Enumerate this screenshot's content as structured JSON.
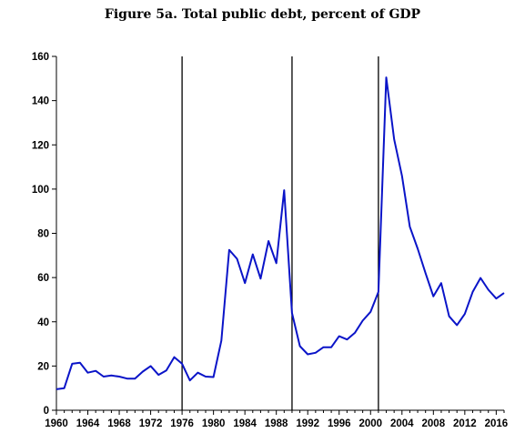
{
  "chart_data": {
    "type": "line",
    "title": "Figure 5a. Total public debt, percent of GDP",
    "xlabel": "",
    "ylabel": "",
    "xlim": [
      1960,
      2017
    ],
    "ylim": [
      0,
      160
    ],
    "y_ticks": [
      0,
      20,
      40,
      60,
      80,
      100,
      120,
      140,
      160
    ],
    "x_ticks": [
      1960,
      1964,
      1968,
      1972,
      1976,
      1980,
      1984,
      1988,
      1992,
      1996,
      2000,
      2004,
      2008,
      2012,
      2016
    ],
    "grid": false,
    "series_color": "#0a14c8",
    "reference_lines_x": [
      1976,
      1990,
      2001
    ],
    "series": [
      {
        "x": [
          1960,
          1961,
          1962,
          1963,
          1964,
          1965,
          1966,
          1967,
          1968,
          1969,
          1970,
          1971,
          1972,
          1973,
          1974,
          1975,
          1976,
          1977,
          1978,
          1979,
          1980,
          1981,
          1982,
          1983,
          1984,
          1985,
          1986,
          1987,
          1988,
          1989,
          1990,
          1991,
          1992,
          1993,
          1994,
          1995,
          1996,
          1997,
          1998,
          1999,
          2000,
          2001,
          2002,
          2003,
          2004,
          2005,
          2006,
          2007,
          2008,
          2009,
          2010,
          2011,
          2012,
          2013,
          2014,
          2015,
          2016,
          2017
        ],
        "y": [
          9.5,
          10,
          21,
          21.5,
          17,
          17.8,
          15.2,
          15.7,
          15.2,
          14.3,
          14.3,
          17.5,
          20,
          16,
          18,
          24,
          21,
          13.5,
          17,
          15.2,
          15,
          31.5,
          72.5,
          68.5,
          57.5,
          70.5,
          59.5,
          76.5,
          66.5,
          99.5,
          44,
          29,
          25.3,
          26,
          28.5,
          28.5,
          33.5,
          32,
          35,
          40.5,
          44.5,
          53.5,
          150.5,
          122.5,
          106,
          83,
          73,
          62,
          51.5,
          57.5,
          42.5,
          38.5,
          43.5,
          53.5,
          59.8,
          54.5,
          50.5,
          53
        ]
      }
    ]
  }
}
